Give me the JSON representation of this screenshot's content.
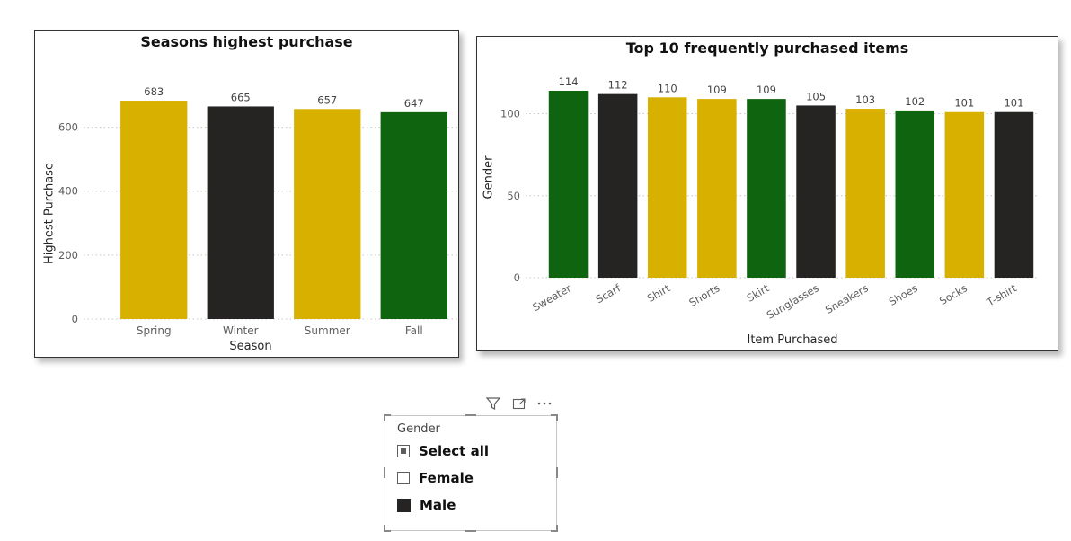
{
  "colors": {
    "gold": "#d8b100",
    "dark": "#252423",
    "green": "#0f650f",
    "grid": "#c8c6c4",
    "text": "#605e5c"
  },
  "chart_data": [
    {
      "type": "bar",
      "title": "Seasons highest purchase",
      "xlabel": "Season",
      "ylabel": "Highest Purchase",
      "categories": [
        "Spring",
        "Winter",
        "Summer",
        "Fall"
      ],
      "values": [
        683,
        665,
        657,
        647
      ],
      "bar_colors": [
        "gold",
        "dark",
        "gold",
        "green"
      ],
      "yticks": [
        0,
        200,
        400,
        600
      ],
      "ylim": [
        0,
        700
      ],
      "grid": true
    },
    {
      "type": "bar",
      "title": "Top 10 frequently purchased items",
      "xlabel": "Item Purchased",
      "ylabel": "Gender",
      "categories": [
        "Sweater",
        "Scarf",
        "Shirt",
        "Shorts",
        "Skirt",
        "Sunglasses",
        "Sneakers",
        "Shoes",
        "Socks",
        "T-shirt"
      ],
      "values": [
        114,
        112,
        110,
        109,
        109,
        105,
        103,
        102,
        101,
        101
      ],
      "bar_colors": [
        "green",
        "dark",
        "gold",
        "gold",
        "green",
        "dark",
        "gold",
        "green",
        "gold",
        "dark"
      ],
      "yticks": [
        0,
        50,
        100
      ],
      "ylim": [
        0,
        114
      ],
      "grid": true
    }
  ],
  "slicer": {
    "title": "Gender",
    "items": [
      {
        "label": "Select all",
        "state": "partial"
      },
      {
        "label": "Female",
        "state": "unchecked"
      },
      {
        "label": "Male",
        "state": "checked"
      }
    ],
    "header_icons": [
      "filter-icon",
      "focus-mode-icon",
      "more-options-icon"
    ]
  }
}
